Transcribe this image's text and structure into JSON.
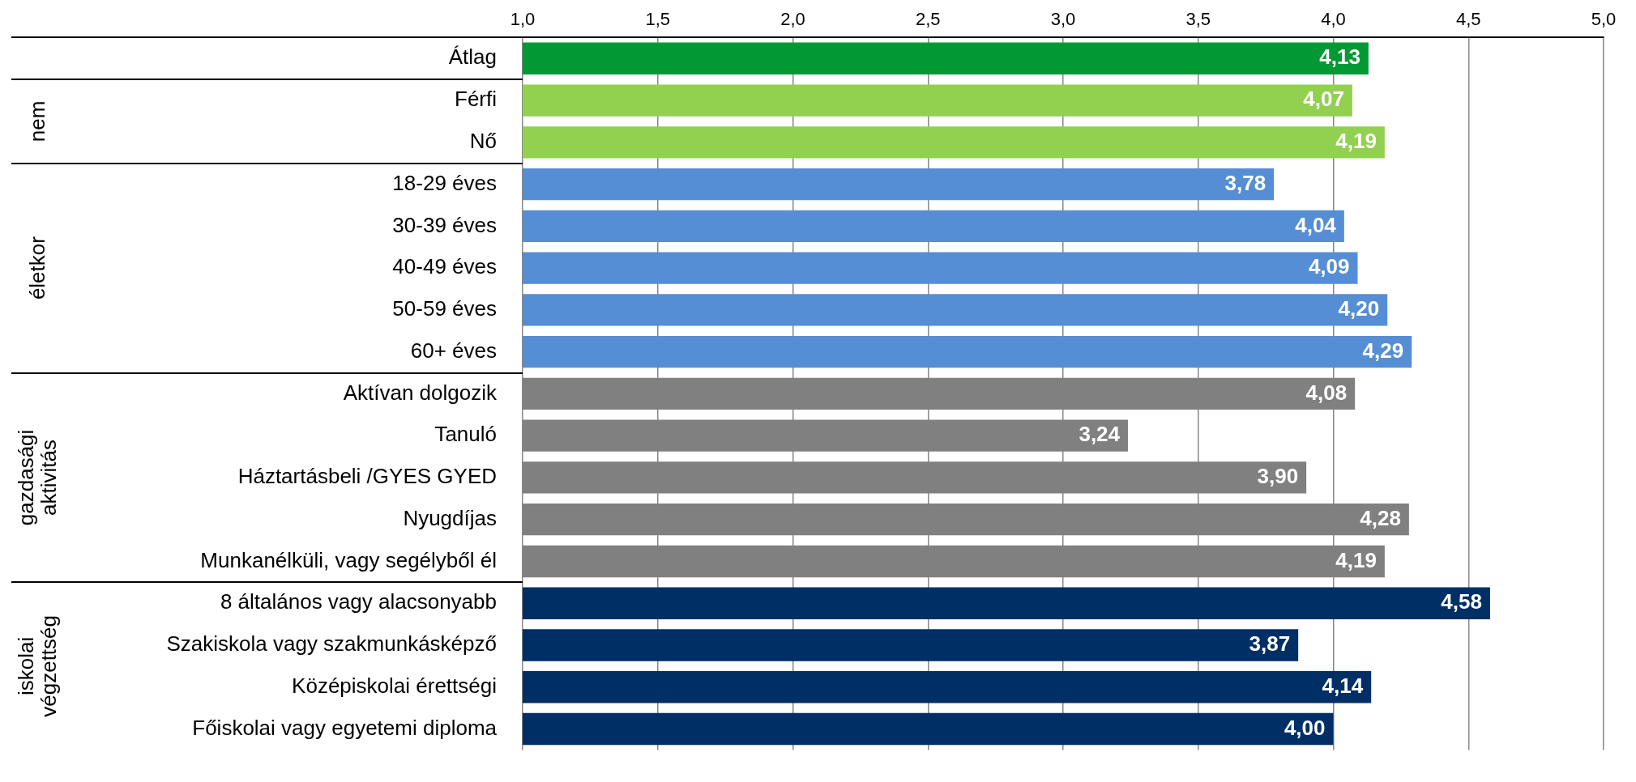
{
  "chart_data": {
    "type": "bar",
    "orientation": "horizontal",
    "categories": [
      "Átlag",
      "Férfi",
      "Nő",
      "18-29 éves",
      "30-39 éves",
      "40-49 éves",
      "50-59 éves",
      "60+ éves",
      "Aktívan dolgozik",
      "Tanuló",
      "Háztartásbeli /GYES GYED",
      "Nyugdíjas",
      "Munkanélküli, vagy segélyből él",
      "8 általános vagy alacsonyabb",
      "Szakiskola vagy szakmunkásképző",
      "Középiskolai érettségi",
      "Főiskolai vagy egyetemi diploma"
    ],
    "values": [
      4.13,
      4.07,
      4.19,
      3.78,
      4.04,
      4.09,
      4.2,
      4.29,
      4.08,
      3.24,
      3.9,
      4.28,
      4.19,
      4.58,
      3.87,
      4.14,
      4.0
    ],
    "value_labels": [
      "4,13",
      "4,07",
      "4,19",
      "3,78",
      "4,04",
      "4,09",
      "4,20",
      "4,29",
      "4,08",
      "3,24",
      "3,90",
      "4,28",
      "4,19",
      "4,58",
      "3,87",
      "4,14",
      "4,00"
    ],
    "colors": [
      "#009933",
      "#92d050",
      "#92d050",
      "#558ed5",
      "#558ed5",
      "#558ed5",
      "#558ed5",
      "#558ed5",
      "#808080",
      "#808080",
      "#808080",
      "#808080",
      "#808080",
      "#002f66",
      "#002f66",
      "#002f66",
      "#002f66"
    ],
    "xlim": [
      1,
      5
    ],
    "xticks": [
      {
        "value": 1,
        "label": "1,0"
      },
      {
        "value": 1.5,
        "label": "1,5"
      },
      {
        "value": 2,
        "label": "2,0"
      },
      {
        "value": 2.5,
        "label": "2,5"
      },
      {
        "value": 3,
        "label": "3,0"
      },
      {
        "value": 3.5,
        "label": "3,5"
      },
      {
        "value": 4,
        "label": "4,0"
      },
      {
        "value": 4.5,
        "label": "4,5"
      },
      {
        "value": 5,
        "label": "5,0"
      }
    ],
    "grid": "x",
    "annotations": [
      "nem",
      "életkor",
      "gazdasági aktivitás",
      "iskolai végzettség"
    ]
  }
}
